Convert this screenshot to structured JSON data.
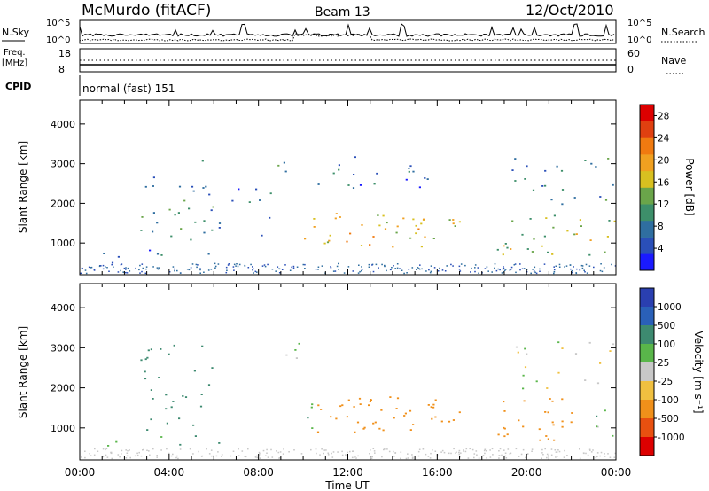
{
  "header": {
    "station": "McMurdo (fitACF)",
    "beam": "Beam 13",
    "date": "12/Oct/2010"
  },
  "noise_panel": {
    "left_label": "N.Sky",
    "right_label": "N.Search",
    "left_ticks": [
      "10^5",
      "10^0"
    ],
    "right_ticks": [
      "10^5",
      "10^0"
    ]
  },
  "freq_panel": {
    "left_label_line1": "Freq.",
    "left_label_line2": "[MHz]",
    "right_label": "Nave",
    "left_ticks": [
      "18",
      "8"
    ],
    "right_ticks": [
      "60",
      "0"
    ]
  },
  "cpid_panel": {
    "label": "CPID",
    "text": "normal (fast) 151"
  },
  "x_axis": {
    "label": "Time UT",
    "ticks": [
      "00:00",
      "04:00",
      "08:00",
      "12:00",
      "16:00",
      "20:00",
      "00:00"
    ]
  },
  "colors": {
    "power_scale": [
      "#1a1aff",
      "#2a4fb8",
      "#2f6ea0",
      "#3d8f6a",
      "#6aa54a",
      "#d8c020",
      "#f0a020",
      "#f07a10",
      "#e04010",
      "#dd0000"
    ],
    "velocity_scale": [
      "#2a3fb0",
      "#2a60b8",
      "#3d8a70",
      "#59b64a",
      "#c8c8c8",
      "#f0c040",
      "#f0901a",
      "#e85010",
      "#dd0000"
    ]
  },
  "chart_data": [
    {
      "type": "heatmap",
      "title": "",
      "xlabel": "Time UT",
      "ylabel": "Slant Range [km]",
      "xlim": [
        0,
        24
      ],
      "ylim": [
        200,
        4600
      ],
      "yticks": [
        "1000",
        "2000",
        "3000",
        "4000"
      ],
      "colorbar": {
        "label": "Power [dB]",
        "ticks": [
          "4",
          "8",
          "12",
          "16",
          "20",
          "24",
          "28"
        ],
        "range": [
          0,
          30
        ]
      },
      "regions": [
        {
          "t0": 0.9,
          "t1": 1.7,
          "r0": 400,
          "r1": 800,
          "value": 4,
          "density": 0.75
        },
        {
          "t0": 2.5,
          "t1": 3.4,
          "r0": 900,
          "r1": 3000,
          "value": 8,
          "density": 0.35
        },
        {
          "t0": 3.4,
          "t1": 6.0,
          "r0": 900,
          "r1": 3100,
          "value": 10,
          "density": 0.35
        },
        {
          "t0": 2.8,
          "t1": 6.2,
          "r0": 600,
          "r1": 850,
          "value": 7,
          "density": 0.4
        },
        {
          "t0": 6.2,
          "t1": 9.0,
          "r0": 1000,
          "r1": 2600,
          "value": 5,
          "density": 0.2
        },
        {
          "t0": 8.7,
          "t1": 10.0,
          "r0": 2700,
          "r1": 3200,
          "value": 8,
          "density": 0.45
        },
        {
          "t0": 9.8,
          "t1": 16.8,
          "r0": 2400,
          "r1": 3200,
          "value": 6,
          "density": 0.3
        },
        {
          "t0": 9.8,
          "t1": 15.4,
          "r0": 900,
          "r1": 1800,
          "value": 18,
          "density": 0.6
        },
        {
          "t0": 15.4,
          "t1": 17.0,
          "r0": 1100,
          "r1": 1800,
          "value": 16,
          "density": 0.55
        },
        {
          "t0": 18.6,
          "t1": 24.0,
          "r0": 700,
          "r1": 1800,
          "value": 14,
          "density": 0.45
        },
        {
          "t0": 19.3,
          "t1": 24.0,
          "r0": 1800,
          "r1": 3200,
          "value": 8,
          "density": 0.3
        }
      ]
    },
    {
      "type": "heatmap",
      "title": "",
      "xlabel": "Time UT",
      "ylabel": "Slant Range [km]",
      "xlim": [
        0,
        24
      ],
      "ylim": [
        200,
        4600
      ],
      "yticks": [
        "1000",
        "2000",
        "3000",
        "4000"
      ],
      "colorbar": {
        "label": "Velocity [m s⁻¹]",
        "ticks": [
          "1000",
          "500",
          "100",
          "25",
          "-25",
          "-100",
          "-500",
          "-1000"
        ],
        "range": [
          -1200,
          1200
        ]
      },
      "regions": [
        {
          "t0": 0.9,
          "t1": 1.7,
          "r0": 400,
          "r1": 800,
          "value": 60,
          "density": 0.75
        },
        {
          "t0": 2.5,
          "t1": 6.0,
          "r0": 900,
          "r1": 3100,
          "value": 300,
          "density": 0.35
        },
        {
          "t0": 2.8,
          "t1": 6.2,
          "r0": 600,
          "r1": 850,
          "value": 150,
          "density": 0.4
        },
        {
          "t0": 8.7,
          "t1": 10.0,
          "r0": 2500,
          "r1": 3200,
          "value": 0,
          "density": 0.4
        },
        {
          "t0": 9.8,
          "t1": 10.6,
          "r0": 1000,
          "r1": 1800,
          "value": 80,
          "density": 0.5
        },
        {
          "t0": 10.6,
          "t1": 17.0,
          "r0": 900,
          "r1": 1800,
          "value": -300,
          "density": 0.7
        },
        {
          "t0": 18.5,
          "t1": 22.0,
          "r0": 700,
          "r1": 1800,
          "value": -300,
          "density": 0.6
        },
        {
          "t0": 19.3,
          "t1": 24.0,
          "r0": 2000,
          "r1": 3200,
          "value": 0,
          "density": 0.3
        },
        {
          "t0": 22.5,
          "t1": 24.0,
          "r0": 800,
          "r1": 1500,
          "value": 80,
          "density": 0.4
        }
      ]
    }
  ]
}
